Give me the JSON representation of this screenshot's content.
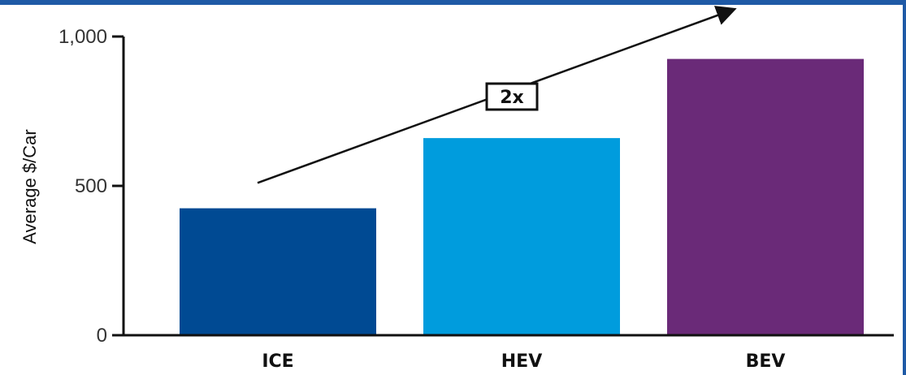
{
  "chart_data": {
    "type": "bar",
    "ylabel": "Average $/Car",
    "categories": [
      "ICE",
      "HEV",
      "BEV"
    ],
    "values": [
      425,
      660,
      925
    ],
    "ylim": [
      0,
      1000
    ],
    "yticks": [
      0,
      500,
      1000
    ],
    "ytick_labels": [
      "0",
      "500",
      "1,000"
    ],
    "grid": false,
    "colors": [
      "#004a93",
      "#009cdd",
      "#6a2a78"
    ],
    "annotation": {
      "text": "2x",
      "arrow_from": [
        "ICE",
        510
      ],
      "arrow_to": [
        "BEV",
        1000
      ]
    }
  },
  "theme": {
    "frame_color": "#1f5aa6",
    "axis_color": "#111111"
  }
}
